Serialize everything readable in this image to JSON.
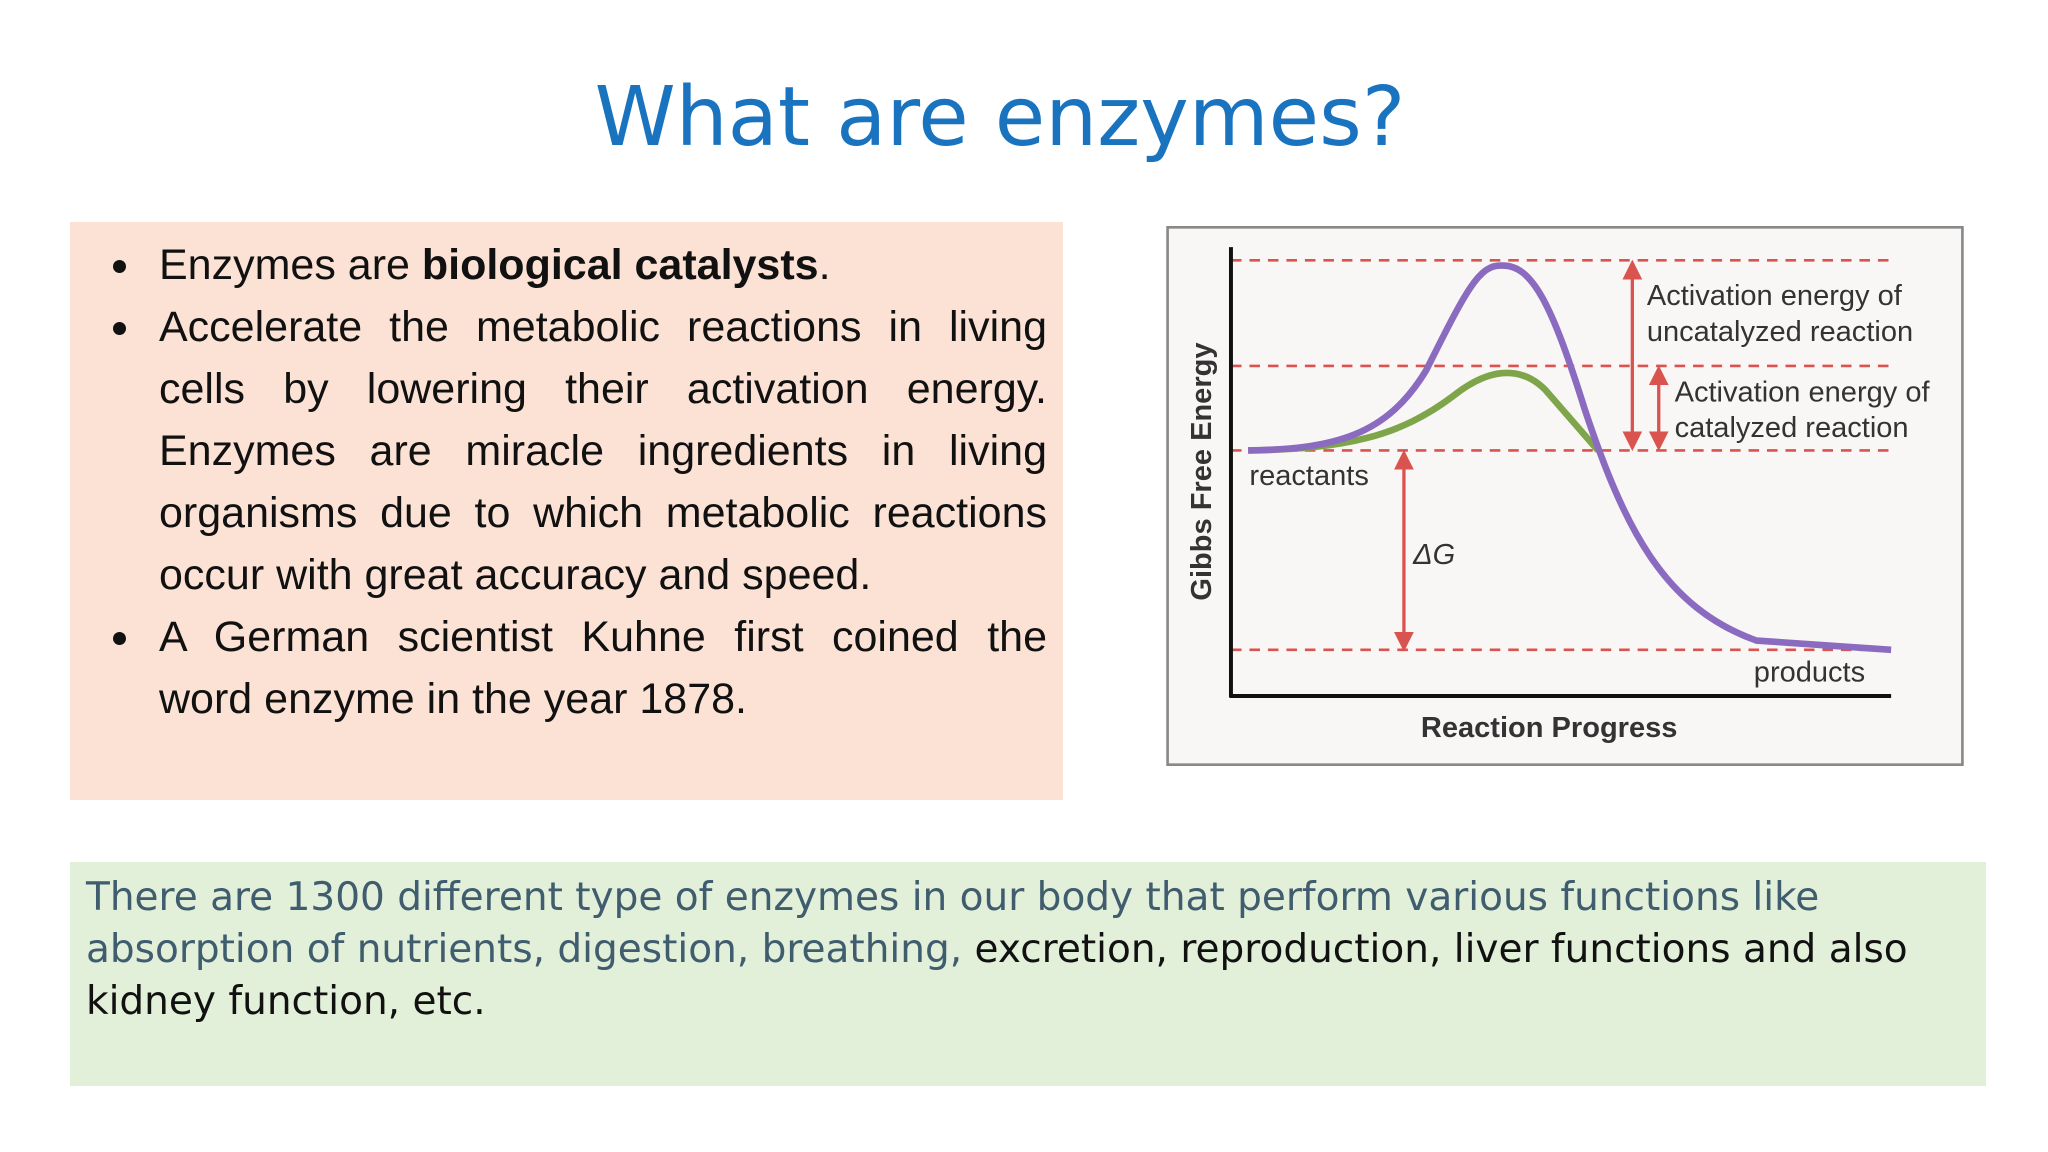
{
  "header": {
    "title": "What are enzymes?"
  },
  "bullets": [
    {
      "before": "Enzymes are ",
      "bold": "biological catalysts",
      "after": "."
    },
    {
      "text": "Accelerate the metabolic reactions in living cells by lowering their activation energy. Enzymes are miracle ingredients in living organisms due to which metabolic reactions occur with great accuracy and speed."
    },
    {
      "text": "A German scientist Kuhne first coined the word enzyme in the year 1878."
    }
  ],
  "diagram": {
    "y_axis_label": "Gibbs Free Energy",
    "x_axis_label": "Reaction Progress",
    "reactants": "reactants",
    "products": "products",
    "delta_g": "ΔG",
    "uncatalyzed": [
      "Activation energy of",
      "uncatalyzed reaction"
    ],
    "catalyzed": [
      "Activation energy of",
      "catalyzed reaction"
    ]
  },
  "footer": {
    "highlighted": "There are 1300 different type of enzymes in our body that perform various functions like absorption of nutrients, digestion, breathing,",
    "rest": " excretion, reproduction, liver functions and also kidney function, etc."
  }
}
